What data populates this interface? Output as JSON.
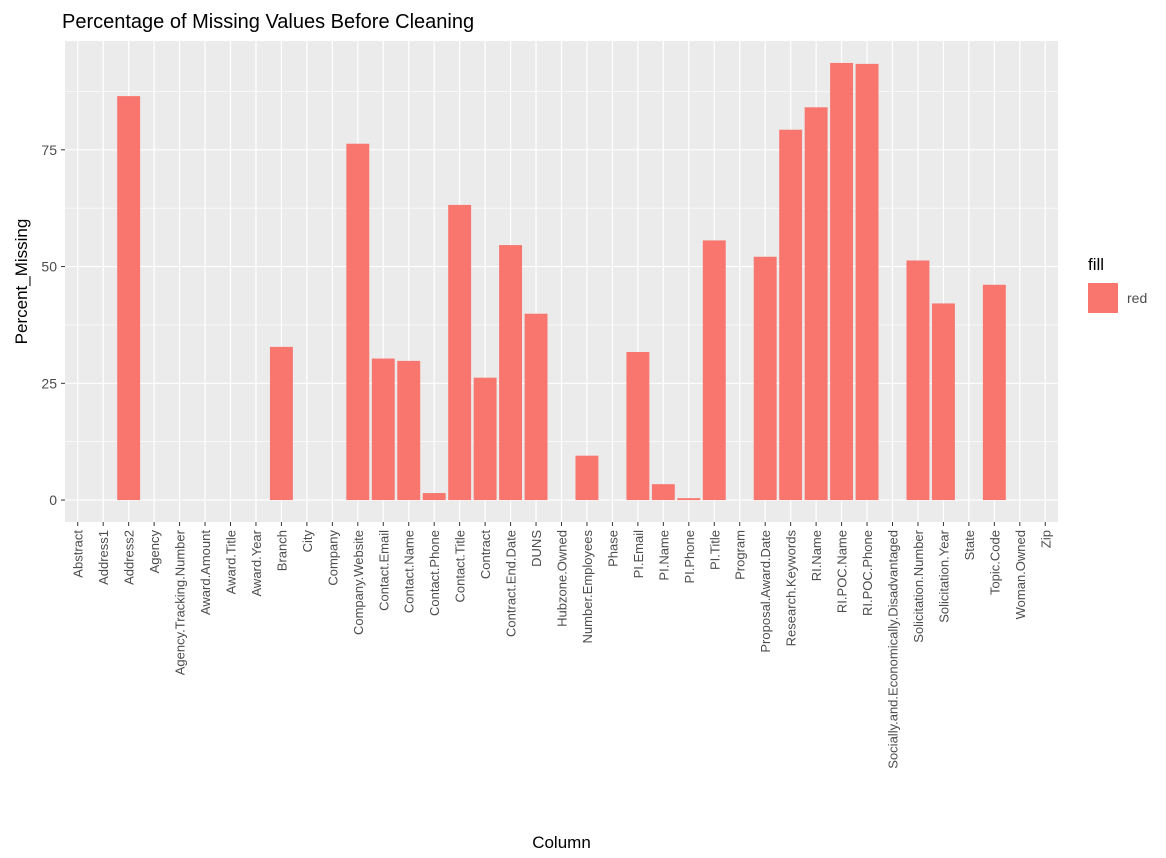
{
  "chart_data": {
    "type": "bar",
    "title": "Percentage of Missing Values Before Cleaning",
    "xlabel": "Column",
    "ylabel": "Percent_Missing",
    "categories": [
      "Abstract",
      "Address1",
      "Address2",
      "Agency",
      "Agency.Tracking.Number",
      "Award.Amount",
      "Award.Title",
      "Award.Year",
      "Branch",
      "City",
      "Company",
      "Company.Website",
      "Contact.Email",
      "Contact.Name",
      "Contact.Phone",
      "Contact.Title",
      "Contract",
      "Contract.End.Date",
      "DUNS",
      "Hubzone.Owned",
      "Number.Employees",
      "Phase",
      "PI.Email",
      "PI.Name",
      "PI.Phone",
      "PI.Title",
      "Program",
      "Proposal.Award.Date",
      "Research.Keywords",
      "RI.Name",
      "RI.POC.Name",
      "RI.POC.Phone",
      "Socially.and.Economically.Disadvantaged",
      "Solicitation.Number",
      "Solicitation.Year",
      "State",
      "Topic.Code",
      "Woman.Owned",
      "Zip"
    ],
    "values": [
      0,
      0,
      86.5,
      0,
      0,
      0,
      0,
      0,
      32.8,
      0,
      0,
      76.3,
      30.3,
      29.8,
      1.5,
      63.2,
      26.2,
      54.6,
      39.9,
      0,
      9.5,
      0,
      31.7,
      3.4,
      0.4,
      55.6,
      0,
      52.1,
      79.3,
      84.1,
      93.6,
      93.4,
      0,
      51.3,
      42.1,
      0,
      46.1,
      0,
      0
    ],
    "ylim": [
      -4.7,
      98.3
    ],
    "yticks": [
      0,
      25,
      50,
      75
    ],
    "grid": true,
    "legend": {
      "title": "fill",
      "placement": "right",
      "entries": [
        {
          "label": "red",
          "color": "#F8766D"
        }
      ]
    },
    "colors": {
      "bar": "#F8766D",
      "panel": "#EBEBEB",
      "grid": "#FFFFFF",
      "axis_text": "#4D4D4D",
      "tick": "#333333"
    }
  }
}
